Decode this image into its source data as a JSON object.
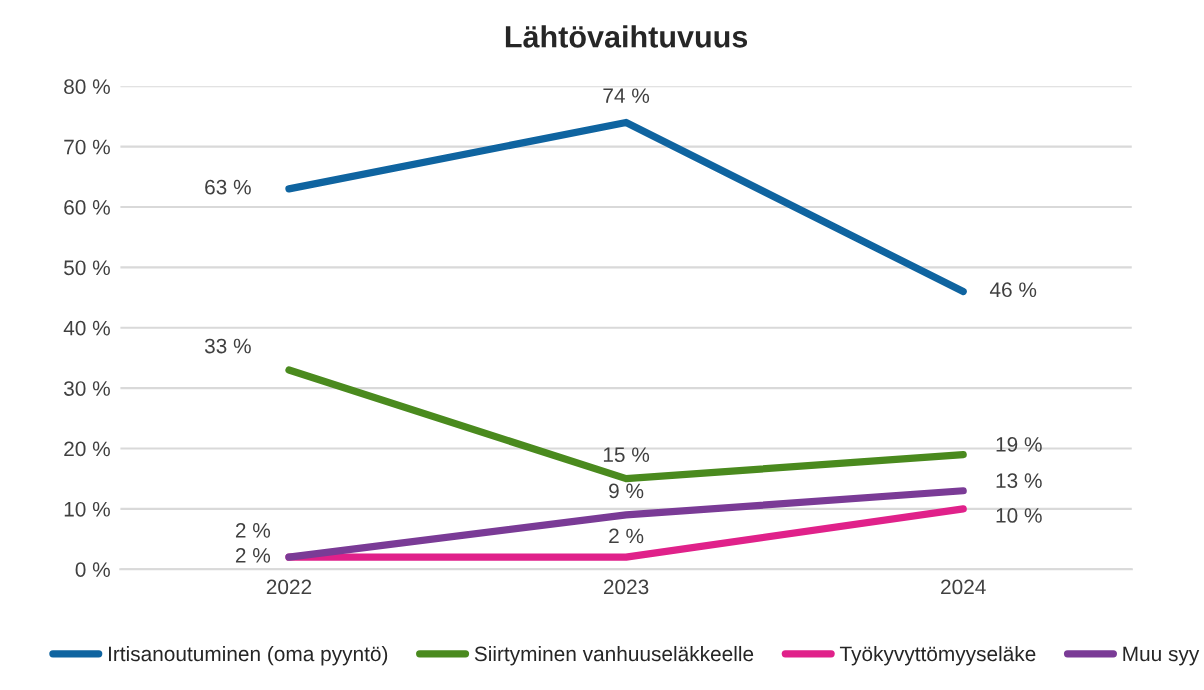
{
  "chart_data": {
    "type": "line",
    "title": "Lähtövaihtuvuus",
    "categories": [
      "2022",
      "2023",
      "2024"
    ],
    "series": [
      {
        "name": "Irtisanoutuminen (oma pyyntö)",
        "color": "#0f64a0",
        "values": [
          63,
          74,
          46
        ],
        "value_labels": [
          "63 %",
          "74 %",
          "46 %"
        ]
      },
      {
        "name": "Siirtyminen vanhuuseläkkeelle",
        "color": "#4a8a1e",
        "values": [
          33,
          15,
          19
        ],
        "value_labels": [
          "33 %",
          "15 %",
          "19 %"
        ]
      },
      {
        "name": "Työkyvyttömyyseläke",
        "color": "#e0218a",
        "values": [
          2,
          2,
          10
        ],
        "value_labels": [
          "2 %",
          "2 %",
          "10 %"
        ]
      },
      {
        "name": "Muu syy",
        "color": "#7a3b96",
        "values": [
          2,
          9,
          13
        ],
        "value_labels": [
          "2 %",
          "9 %",
          "13 %"
        ]
      }
    ],
    "ylim": [
      0,
      80
    ],
    "yticks": [
      {
        "value": 0,
        "label": "0 %"
      },
      {
        "value": 10,
        "label": "10 %"
      },
      {
        "value": 20,
        "label": "20 %"
      },
      {
        "value": 30,
        "label": "30 %"
      },
      {
        "value": 40,
        "label": "40 %"
      },
      {
        "value": 50,
        "label": "50 %"
      },
      {
        "value": 60,
        "label": "60 %"
      },
      {
        "value": 70,
        "label": "70 %"
      },
      {
        "value": 80,
        "label": "80 %"
      }
    ],
    "grid": "y",
    "legend": "bottom",
    "marker": "none",
    "line_style": "solid"
  }
}
